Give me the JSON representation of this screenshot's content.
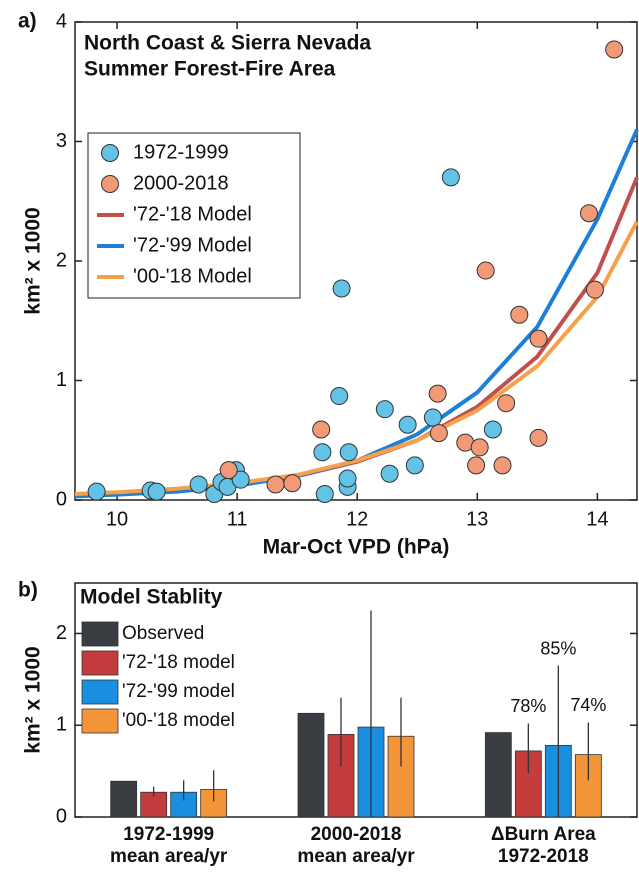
{
  "chart_data": [
    {
      "type": "scatter",
      "panel_label": "a)",
      "title": [
        "North Coast & Sierra Nevada",
        "Summer Forest-Fire Area"
      ],
      "x_label": "Mar-Oct VPD (hPa)",
      "y_label": "km² x 1000",
      "xlim": [
        9.65,
        14.33
      ],
      "ylim": [
        0,
        4
      ],
      "xticks": [
        10,
        11,
        12,
        13,
        14
      ],
      "yticks": [
        0,
        1,
        2,
        3,
        4
      ],
      "grid": false,
      "legend": "upper left",
      "series": [
        {
          "name": "1972-1999",
          "mode": "markers",
          "color": "#62c3e6",
          "x": [
            9.83,
            10.28,
            10.33,
            10.68,
            10.81,
            10.87,
            10.92,
            10.99,
            11.03,
            11.73,
            11.71,
            11.85,
            11.87,
            11.92,
            11.92,
            11.93,
            12.23,
            12.27,
            12.42,
            12.48,
            12.63,
            12.78,
            13.13
          ],
          "values": [
            0.07,
            0.08,
            0.07,
            0.13,
            0.05,
            0.15,
            0.11,
            0.25,
            0.17,
            0.05,
            0.4,
            0.87,
            1.77,
            0.11,
            0.18,
            0.4,
            0.76,
            0.22,
            0.63,
            0.29,
            0.69,
            2.7,
            0.59
          ]
        },
        {
          "name": "2000-2018",
          "mode": "markers",
          "color": "#f29a78",
          "x": [
            10.93,
            11.32,
            11.46,
            11.7,
            12.67,
            12.68,
            12.9,
            13.02,
            13.07,
            12.99,
            13.21,
            13.24,
            13.35,
            13.51,
            13.51,
            13.93,
            13.98,
            14.14
          ],
          "values": [
            0.25,
            0.13,
            0.14,
            0.59,
            0.89,
            0.56,
            0.48,
            0.44,
            1.92,
            0.29,
            0.29,
            0.81,
            1.55,
            0.52,
            1.35,
            2.4,
            1.76,
            3.77
          ]
        },
        {
          "name": "'72-'18 Model",
          "mode": "line",
          "color": "#c0504d",
          "x": [
            9.65,
            10,
            10.5,
            11,
            11.5,
            12,
            12.5,
            13,
            13.5,
            14,
            14.33
          ],
          "values": [
            0.04,
            0.055,
            0.085,
            0.13,
            0.2,
            0.32,
            0.5,
            0.78,
            1.2,
            1.9,
            2.7
          ]
        },
        {
          "name": "'72-'99 Model",
          "mode": "line",
          "color": "#1f7fd6",
          "x": [
            9.65,
            10,
            10.5,
            11,
            11.5,
            12,
            12.5,
            13,
            13.5,
            14,
            14.33
          ],
          "values": [
            0.03,
            0.045,
            0.07,
            0.12,
            0.2,
            0.33,
            0.55,
            0.9,
            1.45,
            2.35,
            3.1
          ]
        },
        {
          "name": "'00-'18 Model",
          "mode": "line",
          "color": "#f6a04c",
          "x": [
            9.65,
            10,
            10.5,
            11,
            11.5,
            12,
            12.5,
            13,
            13.5,
            14,
            14.33
          ],
          "values": [
            0.05,
            0.065,
            0.095,
            0.14,
            0.21,
            0.33,
            0.5,
            0.75,
            1.12,
            1.7,
            2.33
          ]
        }
      ]
    },
    {
      "type": "bar",
      "panel_label": "b)",
      "title": "Model Stablity",
      "y_label": "km² x 1000",
      "ylim": [
        0,
        2.55
      ],
      "yticks": [
        0,
        1,
        2
      ],
      "grid": false,
      "legend": "upper left",
      "categories": [
        [
          "1972-1999",
          "mean area/yr"
        ],
        [
          "2000-2018",
          "mean area/yr"
        ],
        [
          "ΔBurn Area",
          "1972-2018"
        ]
      ],
      "series": [
        {
          "name": "Observed",
          "color": "#3a3d42",
          "values": [
            0.39,
            1.13,
            0.92
          ]
        },
        {
          "name": "'72-'18 model",
          "color": "#c43c3c",
          "values": [
            0.27,
            0.9,
            0.72
          ],
          "error_low": [
            0.22,
            0.55,
            0.48
          ],
          "error_high": [
            0.33,
            1.3,
            1.02
          ]
        },
        {
          "name": "'72-'99 model",
          "color": "#1a8fe0",
          "values": [
            0.27,
            0.98,
            0.78
          ],
          "error_low": [
            0.18,
            0,
            0
          ],
          "error_high": [
            0.4,
            2.25,
            1.65
          ]
        },
        {
          "name": "'00-'18 model",
          "color": "#f5953a",
          "values": [
            0.3,
            0.88,
            0.68
          ],
          "error_low": [
            0.17,
            0.55,
            0.4
          ],
          "error_high": [
            0.51,
            1.3,
            1.03
          ]
        }
      ],
      "annotations": [
        "78%",
        "85%",
        "74%"
      ]
    }
  ]
}
